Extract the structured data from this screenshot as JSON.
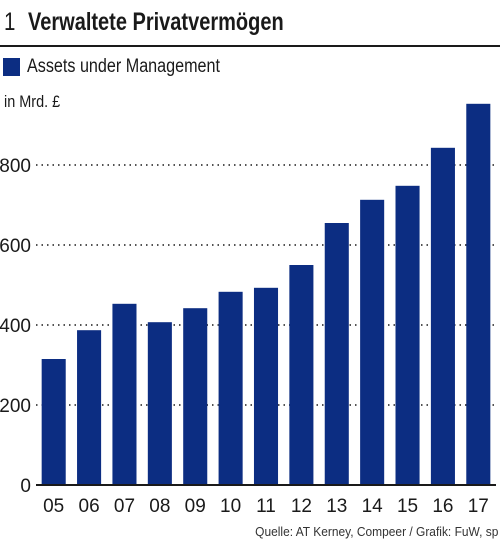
{
  "figure": {
    "number": "1",
    "title": "Verwaltete Privatvermögen",
    "unit": "in Mrd. £",
    "source": "Quelle: AT Kerney, Compeer / Grafik: FuW, sp"
  },
  "colors": {
    "bar": "#0c2d82",
    "axis": "#1a1a1a",
    "grid": "#1a1a1a",
    "text": "#1a1a1a"
  },
  "chart_data": {
    "type": "bar",
    "categories": [
      "05",
      "06",
      "07",
      "08",
      "09",
      "10",
      "11",
      "12",
      "13",
      "14",
      "15",
      "16",
      "17"
    ],
    "series": [
      {
        "name": "Assets under Management",
        "values": [
          315,
          387,
          453,
          407,
          442,
          483,
          493,
          550,
          655,
          713,
          748,
          843,
          953
        ]
      }
    ],
    "xlabel": "",
    "ylabel": "in Mrd. £",
    "ylim": [
      0,
      1000
    ],
    "yticks": [
      0,
      200,
      400,
      600,
      800
    ],
    "grid": true,
    "legend": "top-left"
  }
}
